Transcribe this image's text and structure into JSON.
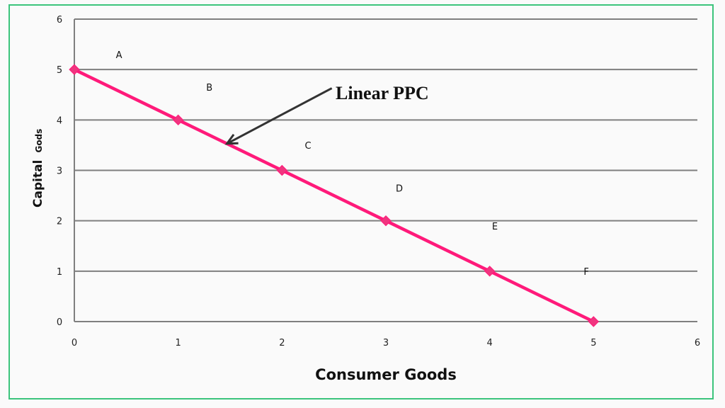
{
  "chart_data": {
    "type": "line",
    "title": "",
    "xlabel": "Consumer Goods",
    "ylabel": "Capital Gods",
    "ylabel_parts": [
      "Capital",
      "Gods"
    ],
    "xlim": [
      0,
      6
    ],
    "ylim": [
      0,
      6
    ],
    "x_ticks": [
      "0",
      "1",
      "2",
      "3",
      "4",
      "5",
      "6"
    ],
    "y_ticks": [
      "0",
      "1",
      "2",
      "3",
      "4",
      "5",
      "6"
    ],
    "grid": "horizontal",
    "legend": null,
    "series": [
      {
        "name": "Linear PPC",
        "color": "#ff1a7a",
        "marker": "diamond",
        "x": [
          0,
          1,
          2,
          3,
          4,
          5
        ],
        "y": [
          5,
          4,
          3,
          2,
          1,
          0
        ]
      }
    ],
    "point_labels": [
      {
        "text": "A",
        "x": 0.43,
        "y": 5.3
      },
      {
        "text": "B",
        "x": 1.3,
        "y": 4.65
      },
      {
        "text": "C",
        "x": 2.25,
        "y": 3.5
      },
      {
        "text": "D",
        "x": 3.13,
        "y": 2.65
      },
      {
        "text": "E",
        "x": 4.05,
        "y": 1.9
      },
      {
        "text": "F",
        "x": 4.93,
        "y": 1.0
      }
    ],
    "annotations": [
      {
        "text": "Linear PPC",
        "arrow_from": [
          2.5,
          4.7
        ],
        "arrow_to": [
          1.47,
          3.53
        ]
      }
    ]
  },
  "colors": {
    "line": "#ff1a7a",
    "marker": "#f0357f",
    "grid": "#7f7f7f",
    "frame": "#3cc47c",
    "arrow": "#333333"
  }
}
